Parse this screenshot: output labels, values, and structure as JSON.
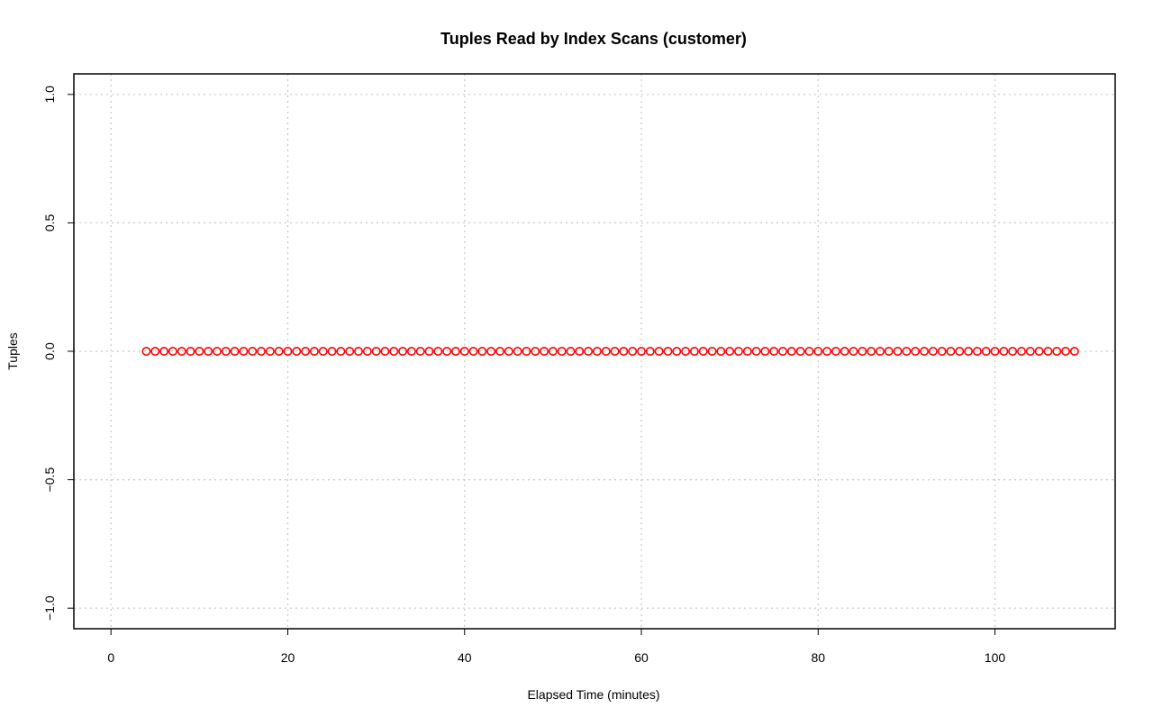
{
  "chart_data": {
    "type": "scatter",
    "title": "Tuples Read by Index Scans (customer)",
    "xlabel": "Elapsed Time (minutes)",
    "ylabel": "Tuples",
    "xlim": [
      -4.2,
      113.6
    ],
    "ylim": [
      -1.08,
      1.08
    ],
    "x_ticks": [
      0,
      20,
      40,
      60,
      80,
      100
    ],
    "y_ticks": [
      -1.0,
      -0.5,
      0.0,
      0.5,
      1.0
    ],
    "x_tick_labels": [
      "0",
      "20",
      "40",
      "60",
      "80",
      "100"
    ],
    "y_tick_labels": [
      "−1.0",
      "−0.5",
      "0.0",
      "0.5",
      "1.0"
    ],
    "grid": true,
    "marker": "open-circle",
    "series": [
      {
        "color": "#ff0000",
        "x": [
          4,
          5,
          6,
          7,
          8,
          9,
          10,
          11,
          12,
          13,
          14,
          15,
          16,
          17,
          18,
          19,
          20,
          21,
          22,
          23,
          24,
          25,
          26,
          27,
          28,
          29,
          30,
          31,
          32,
          33,
          34,
          35,
          36,
          37,
          38,
          39,
          40,
          41,
          42,
          43,
          44,
          45,
          46,
          47,
          48,
          49,
          50,
          51,
          52,
          53,
          54,
          55,
          56,
          57,
          58,
          59,
          60,
          61,
          62,
          63,
          64,
          65,
          66,
          67,
          68,
          69,
          70,
          71,
          72,
          73,
          74,
          75,
          76,
          77,
          78,
          79,
          80,
          81,
          82,
          83,
          84,
          85,
          86,
          87,
          88,
          89,
          90,
          91,
          92,
          93,
          94,
          95,
          96,
          97,
          98,
          99,
          100,
          101,
          102,
          103,
          104,
          105,
          106,
          107,
          108,
          109
        ],
        "y": [
          0,
          0,
          0,
          0,
          0,
          0,
          0,
          0,
          0,
          0,
          0,
          0,
          0,
          0,
          0,
          0,
          0,
          0,
          0,
          0,
          0,
          0,
          0,
          0,
          0,
          0,
          0,
          0,
          0,
          0,
          0,
          0,
          0,
          0,
          0,
          0,
          0,
          0,
          0,
          0,
          0,
          0,
          0,
          0,
          0,
          0,
          0,
          0,
          0,
          0,
          0,
          0,
          0,
          0,
          0,
          0,
          0,
          0,
          0,
          0,
          0,
          0,
          0,
          0,
          0,
          0,
          0,
          0,
          0,
          0,
          0,
          0,
          0,
          0,
          0,
          0,
          0,
          0,
          0,
          0,
          0,
          0,
          0,
          0,
          0,
          0,
          0,
          0,
          0,
          0,
          0,
          0,
          0,
          0,
          0,
          0,
          0,
          0,
          0,
          0,
          0,
          0,
          0,
          0,
          0,
          0
        ]
      }
    ]
  }
}
